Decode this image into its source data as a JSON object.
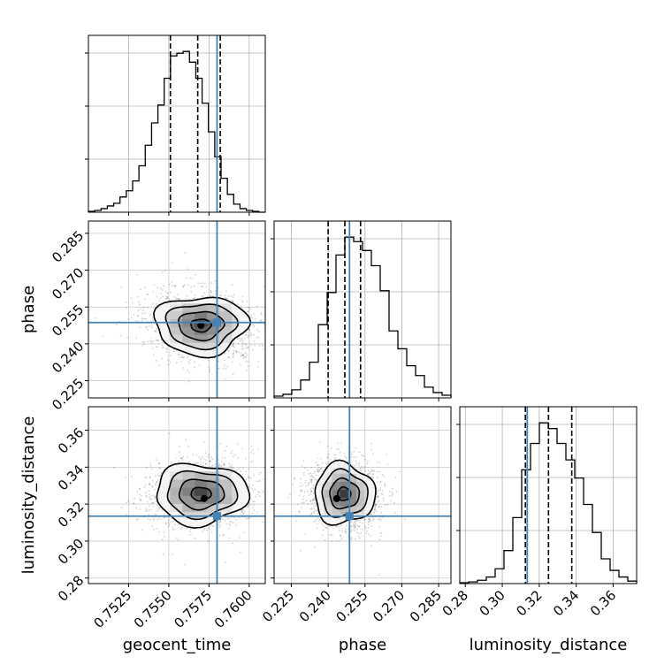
{
  "chart_data": {
    "type": "corner",
    "parameters": [
      "geocent_time",
      "phase",
      "luminosity_distance"
    ],
    "axis_labels": {
      "geocent_time": "geocent_time",
      "phase": "phase",
      "luminosity_distance": "luminosity_distance"
    },
    "ranges": {
      "geocent_time": [
        0.75,
        0.761
      ],
      "phase": [
        0.218,
        0.29
      ],
      "luminosity_distance": [
        0.277,
        0.3727
      ]
    },
    "ticks": {
      "geocent_time": {
        "values": [
          0.7525,
          0.755,
          0.7575,
          0.76
        ],
        "labels": [
          "0.7525",
          "0.7550",
          "0.7575",
          "0.7600"
        ]
      },
      "phase": {
        "values": [
          0.225,
          0.24,
          0.255,
          0.27,
          0.285
        ],
        "labels": [
          "0.225",
          "0.240",
          "0.255",
          "0.270",
          "0.285"
        ]
      },
      "luminosity_distance": {
        "values": [
          0.28,
          0.3,
          0.32,
          0.34,
          0.36
        ],
        "labels": [
          "0.28",
          "0.30",
          "0.32",
          "0.34",
          "0.36"
        ]
      }
    },
    "truths": {
      "geocent_time": 0.758,
      "phase": 0.2487,
      "luminosity_distance": 0.3135
    },
    "quantiles": {
      "geocent_time": [
        0.7551,
        0.7568,
        0.7582
      ],
      "phase": [
        0.24,
        0.2468,
        0.2532
      ],
      "luminosity_distance": [
        0.3125,
        0.325,
        0.3376
      ]
    },
    "histograms": {
      "geocent_time": {
        "edges_range": [
          0.75,
          0.761
        ],
        "counts": [
          1,
          2,
          4,
          7,
          10,
          17,
          24,
          35,
          52,
          75,
          100,
          120,
          150,
          175,
          178,
          180,
          168,
          150,
          122,
          90,
          62,
          38,
          20,
          9,
          4,
          2,
          1,
          0
        ]
      },
      "phase": {
        "edges_range": [
          0.218,
          0.29
        ],
        "counts": [
          2,
          4,
          9,
          20,
          40,
          82,
          118,
          160,
          180,
          175,
          165,
          148,
          120,
          75,
          55,
          36,
          25,
          12,
          6,
          3
        ]
      },
      "luminosity_distance": {
        "edges_range": [
          0.277,
          0.3727
        ],
        "counts": [
          1,
          2,
          4,
          8,
          18,
          40,
          80,
          138,
          170,
          195,
          188,
          170,
          150,
          128,
          96,
          62,
          30,
          16,
          8,
          3
        ]
      }
    },
    "contours_2d": [
      {
        "x": "geocent_time",
        "y": "phase",
        "center": [
          0.757,
          0.2475
        ],
        "peak": [
          0.757,
          0.2475
        ],
        "spread": [
          0.0014,
          0.0058
        ],
        "corr": 0.15
      },
      {
        "x": "geocent_time",
        "y": "luminosity_distance",
        "center": [
          0.757,
          0.3255
        ],
        "peak": [
          0.7572,
          0.323
        ],
        "spread": [
          0.0014,
          0.008
        ],
        "corr": -0.1
      },
      {
        "x": "phase",
        "y": "luminosity_distance",
        "center": [
          0.2465,
          0.3255
        ],
        "peak": [
          0.2435,
          0.323
        ],
        "spread": [
          0.006,
          0.008
        ],
        "corr": 0.05
      }
    ],
    "truth_color": "#4682b4",
    "hist_color": "#000000",
    "grid": true,
    "legend": "none"
  }
}
